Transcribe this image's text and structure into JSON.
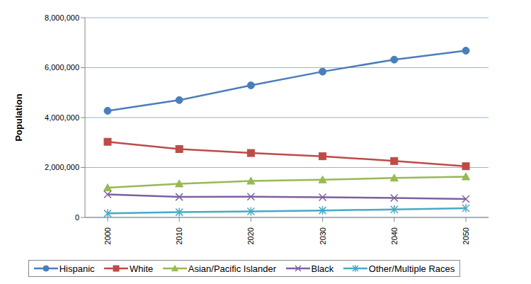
{
  "chart_data": {
    "type": "line",
    "y_label": "Population",
    "categories": [
      "2000",
      "2010",
      "2020",
      "2030",
      "2040",
      "2050"
    ],
    "ylim": [
      0,
      8000000
    ],
    "yticks": [
      0,
      {
        "value": 2000000,
        "label": "2,000,000"
      },
      {
        "value": 4000000,
        "label": "4,000,000"
      },
      {
        "value": 6000000,
        "label": "6,000,000"
      },
      {
        "value": 8000000,
        "label": "8,000,000"
      }
    ],
    "grid": true,
    "legend": "bottom",
    "series": [
      {
        "name": "Hispanic",
        "color": "#4a7ebb",
        "marker": "circle",
        "values": [
          4270000,
          4700000,
          5290000,
          5840000,
          6320000,
          6680000
        ]
      },
      {
        "name": "White",
        "color": "#be4b48",
        "marker": "square",
        "values": [
          3030000,
          2740000,
          2580000,
          2450000,
          2260000,
          2050000
        ]
      },
      {
        "name": "Asian/Pacific Islander",
        "color": "#98b954",
        "marker": "triangle",
        "values": [
          1190000,
          1350000,
          1460000,
          1510000,
          1580000,
          1630000
        ]
      },
      {
        "name": "Black",
        "color": "#7d60a0",
        "marker": "x",
        "values": [
          920000,
          820000,
          830000,
          810000,
          780000,
          740000
        ]
      },
      {
        "name": "Other/Multiple Races",
        "color": "#46aac5",
        "marker": "star",
        "values": [
          160000,
          210000,
          240000,
          280000,
          320000,
          370000
        ]
      }
    ]
  }
}
